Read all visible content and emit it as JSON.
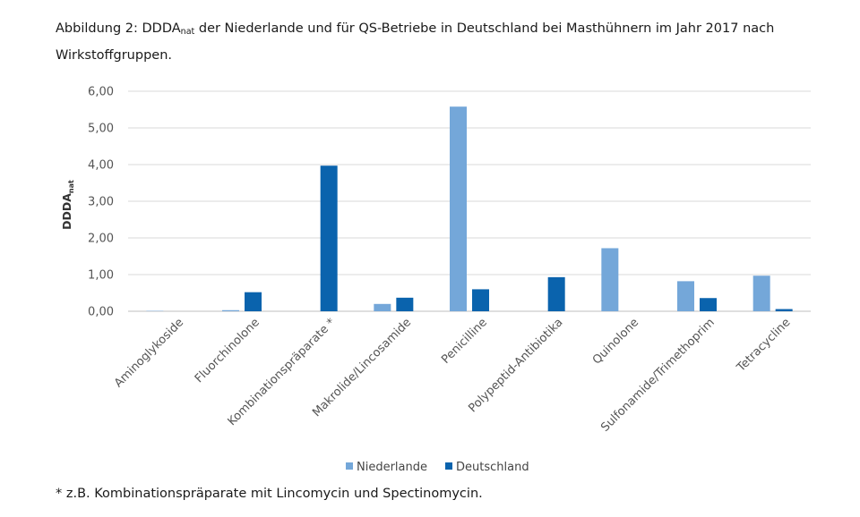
{
  "caption": {
    "prefix": "Abbildung 2: DDDA",
    "sub": "nat",
    "rest": " der Niederlande und für QS-Betriebe in Deutschland bei Masthühnern im Jahr 2017 nach Wirkstoffgruppen."
  },
  "footnote": "* z.B. Kombinationspräparate mit Lincomycin und Spectinomycin.",
  "colors": {
    "niederlande": "#74a7d9",
    "deutschland": "#0a63ad",
    "grid": "#d9d9d9",
    "axis": "#bfbfbf"
  },
  "chart_data": {
    "type": "bar",
    "ylabel": "DDDA",
    "ylabel_sub": "nat",
    "ylim": [
      0,
      6
    ],
    "yticks": [
      "0,00",
      "1,00",
      "2,00",
      "3,00",
      "4,00",
      "5,00",
      "6,00"
    ],
    "grid": true,
    "legend_position": "bottom",
    "categories": [
      "Aminoglykoside",
      "Fluorchinolone",
      "Kombinationspräparate *",
      "Makrolide/Lincosamide",
      "Penicilline",
      "Polypeptid-Antibiotika",
      "Quinolone",
      "Sulfonamide/Trimethoprim",
      "Tetracycline"
    ],
    "series": [
      {
        "name": "Niederlande",
        "values": [
          0.01,
          0.03,
          0.0,
          0.2,
          5.58,
          0.0,
          1.72,
          0.82,
          0.97
        ]
      },
      {
        "name": "Deutschland",
        "values": [
          0.0,
          0.52,
          3.97,
          0.37,
          0.6,
          0.93,
          0.0,
          0.36,
          0.06
        ]
      }
    ]
  }
}
